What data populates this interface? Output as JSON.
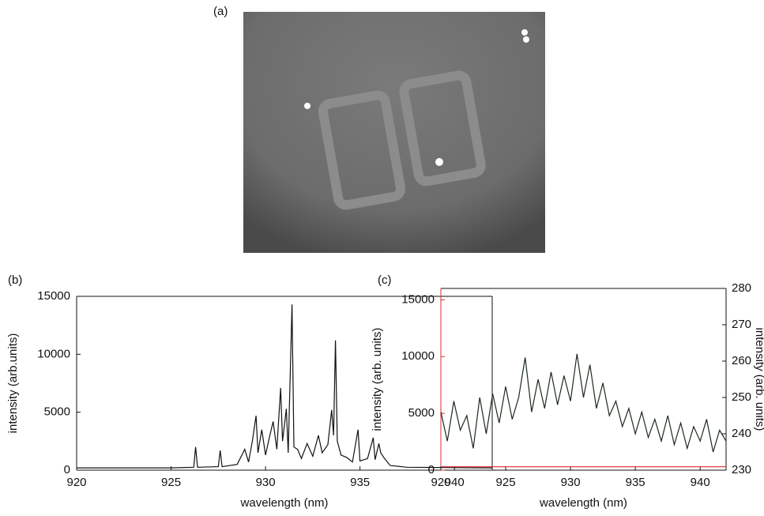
{
  "image": {
    "label": "(a)"
  },
  "chart_data": [
    {
      "type": "line",
      "label": "(b)",
      "xlabel": "wavelength (nm)",
      "ylabel": "intensity (arb.units)",
      "x": [
        920,
        925,
        926.2,
        926.3,
        926.4,
        927.5,
        927.6,
        927.7,
        928.5,
        928.9,
        929.1,
        929.3,
        929.5,
        929.6,
        929.8,
        930,
        930.2,
        930.4,
        930.6,
        930.8,
        930.9,
        931.1,
        931.2,
        931.4,
        931.5,
        931.7,
        931.9,
        932.2,
        932.5,
        932.8,
        933,
        933.3,
        933.5,
        933.6,
        933.7,
        933.8,
        934,
        934.3,
        934.6,
        934.9,
        935,
        935.4,
        935.7,
        935.8,
        936,
        936.1,
        936.3,
        936.6,
        937.5,
        942
      ],
      "values": [
        200,
        200,
        250,
        2000,
        250,
        300,
        1700,
        300,
        500,
        1800,
        700,
        2500,
        4700,
        1500,
        3500,
        1300,
        2800,
        4200,
        1800,
        7100,
        2500,
        5300,
        1500,
        14300,
        2000,
        1800,
        1000,
        2300,
        1200,
        3000,
        1500,
        2200,
        5200,
        3000,
        11200,
        2500,
        1300,
        1100,
        700,
        3500,
        800,
        1000,
        2800,
        900,
        2300,
        1500,
        1000,
        400,
        250,
        200
      ],
      "color": "#111111",
      "xlim": [
        920,
        942
      ],
      "xticks": [
        920,
        925,
        930,
        935,
        940
      ],
      "ylim": [
        0,
        15000
      ],
      "yticks": [
        0,
        5000,
        10000,
        15000
      ]
    },
    {
      "type": "line",
      "label": "(c)",
      "xlabel": "wavelength (nm)",
      "ylabel": "intensity (arb. units)",
      "y2label": "intensity (arb. units)",
      "left_axis_color": "#e02828",
      "series": [
        {
          "axis": "y2",
          "color": "#1c2a1c",
          "x": [
            920,
            920.5,
            921,
            921.5,
            922,
            922.5,
            923,
            923.5,
            924,
            924.5,
            925,
            925.5,
            926,
            926.5,
            927,
            927.5,
            928,
            928.5,
            929,
            929.5,
            930,
            930.5,
            931,
            931.5,
            932,
            932.5,
            933,
            933.5,
            934,
            934.5,
            935,
            935.5,
            936,
            936.5,
            937,
            937.5,
            938,
            938.5,
            939,
            939.5,
            940,
            940.5,
            941,
            941.5,
            942
          ],
          "values": [
            246,
            238,
            249,
            241,
            245,
            236,
            250,
            240,
            251,
            243,
            253,
            244,
            250,
            261,
            246,
            255,
            247,
            257,
            248,
            256,
            249,
            262,
            250,
            259,
            247,
            254,
            245,
            249,
            242,
            247,
            240,
            246,
            239,
            244,
            238,
            245,
            237,
            243,
            236,
            242,
            238,
            244,
            235,
            241,
            238
          ]
        },
        {
          "color": "#e02828",
          "x": [
            920,
            942
          ],
          "values": [
            300,
            300
          ]
        }
      ],
      "xlim": [
        920,
        942
      ],
      "xticks": [
        920,
        925,
        930,
        935,
        940
      ],
      "ylim": [
        0,
        16000
      ],
      "yticks": [
        0,
        5000,
        10000,
        15000
      ],
      "y2lim": [
        230,
        280
      ],
      "y2ticks": [
        230,
        240,
        250,
        260,
        270,
        280
      ]
    }
  ]
}
